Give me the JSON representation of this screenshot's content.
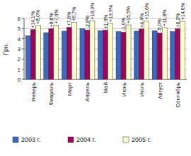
{
  "chart_data": {
    "type": "bar",
    "y_label": "Грн.",
    "categories": [
      "Январь",
      "Февраль",
      "Март",
      "Апрель",
      "Май",
      "Июнь",
      "Июль",
      "Август",
      "Сентябрь"
    ],
    "series": [
      {
        "name": "2003 г.",
        "color": "#3b68c0",
        "values": [
          4.3,
          4.6,
          4.75,
          5.0,
          4.8,
          4.7,
          4.75,
          4.8,
          4.7
        ]
      },
      {
        "name": "2004 г.",
        "color": "#a3005c",
        "values": [
          4.9,
          5.0,
          5.12,
          4.86,
          4.85,
          4.65,
          4.96,
          4.56,
          4.99
        ]
      },
      {
        "name": "2005 г.",
        "color": "#ffffcc",
        "values": [
          5.3,
          5.35,
          5.6,
          5.75,
          5.52,
          5.37,
          5.73,
          5.1,
          5.72
        ]
      }
    ],
    "annotations": [
      [
        "+14,1%",
        "+8,0%"
      ],
      [
        "+8,6%",
        "+7,0%"
      ],
      [
        "+7,8%",
        "+9,7%"
      ],
      [
        "-2,8%",
        "+18,3%"
      ],
      [
        "+1,0%",
        "+13,9%"
      ],
      [
        "-1,0%",
        "+15,5%"
      ],
      [
        "+4,4%",
        "+15,6%"
      ],
      [
        "-5,0%",
        "+11,8%"
      ],
      [
        "+6,2%",
        "+14,6%"
      ]
    ],
    "ylim": [
      0,
      6
    ],
    "yticks": [
      0,
      1,
      2,
      3,
      4,
      5,
      6
    ],
    "grid": true,
    "legend": "bottom"
  }
}
